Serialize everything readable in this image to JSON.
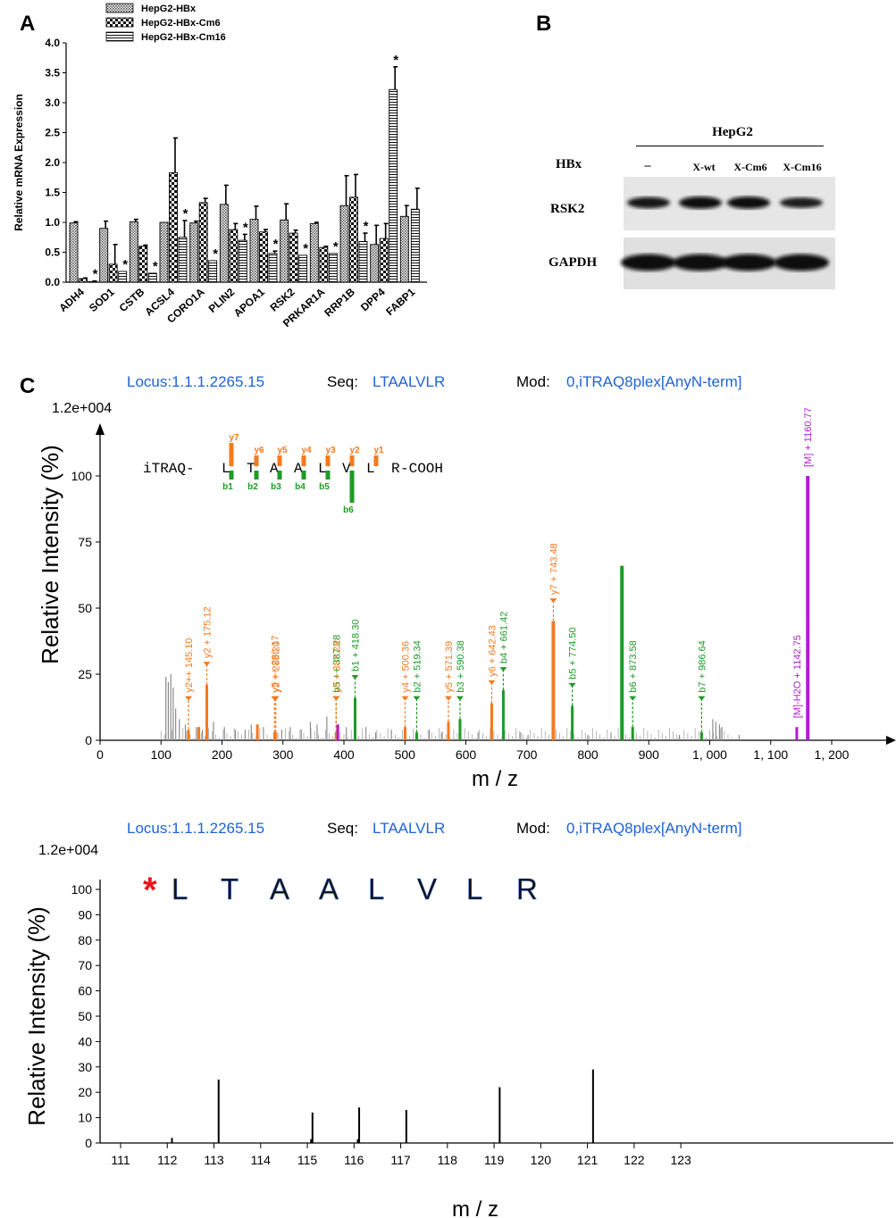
{
  "panels": {
    "a": "A",
    "b": "B",
    "c": "C"
  },
  "colors": {
    "orange": "#f47a20",
    "green": "#1f9a26",
    "magenta": "#b21bd6",
    "blue": "#1f63d8",
    "gray": "#8c8c8c",
    "black": "#000000",
    "red": "#e8161c"
  },
  "chart_data": [
    {
      "id": "panelA",
      "type": "bar",
      "ylabel": "Relative mRNA Expression",
      "ylim": [
        0,
        4.0
      ],
      "yticks": [
        "0.0",
        "0.5",
        "1.0",
        "1.5",
        "2.0",
        "2.5",
        "3.0",
        "3.5",
        "4.0"
      ],
      "categories": [
        "ADH4",
        "SOD1",
        "CSTB",
        "ACSL4",
        "CORO1A",
        "PLIN2",
        "APOA1",
        "RSK2",
        "PRKAR1A",
        "RRP1B",
        "DPP4",
        "FABP1"
      ],
      "legend_position": "top",
      "series": [
        {
          "name": "HepG2-HBx",
          "pattern": "crosshatch",
          "values": [
            0.99,
            0.9,
            1.01,
            1.0,
            0.99,
            1.3,
            1.05,
            1.04,
            0.98,
            1.28,
            0.63,
            1.1
          ],
          "errors": [
            0.02,
            0.12,
            0.04,
            0.0,
            0.03,
            0.32,
            0.22,
            0.27,
            0.02,
            0.5,
            0.32,
            0.18
          ]
        },
        {
          "name": "HepG2-HBx-Cm6",
          "pattern": "checker",
          "values": [
            0.06,
            0.3,
            0.6,
            1.83,
            1.33,
            0.88,
            0.84,
            0.82,
            0.58,
            1.42,
            0.73,
            null
          ],
          "errors": [
            0.01,
            0.33,
            0.02,
            0.58,
            0.07,
            0.1,
            0.04,
            0.05,
            0.02,
            0.38,
            0.25,
            null
          ]
        },
        {
          "name": "HepG2-HBx-Cm16",
          "pattern": "hlines",
          "values": [
            0.01,
            0.18,
            0.15,
            0.75,
            0.36,
            0.7,
            0.48,
            0.45,
            0.48,
            0.68,
            3.22,
            1.22
          ],
          "errors": [
            0.01,
            0.0,
            0.0,
            0.28,
            0.0,
            0.1,
            0.04,
            0.0,
            0.0,
            0.14,
            0.38,
            0.35
          ]
        }
      ],
      "significance": [
        {
          "category": 0,
          "series": 2,
          "label": "*"
        },
        {
          "category": 1,
          "series": 2,
          "label": "*"
        },
        {
          "category": 2,
          "series": 2,
          "label": "*"
        },
        {
          "category": 3,
          "series": 2,
          "label": "*"
        },
        {
          "category": 4,
          "series": 2,
          "label": "*"
        },
        {
          "category": 5,
          "series": 2,
          "label": "*"
        },
        {
          "category": 6,
          "series": 2,
          "label": "*"
        },
        {
          "category": 7,
          "series": 2,
          "label": "*"
        },
        {
          "category": 8,
          "series": 2,
          "label": "*"
        },
        {
          "category": 9,
          "series": 2,
          "label": "*"
        },
        {
          "category": 10,
          "series": 2,
          "label": "*"
        }
      ]
    },
    {
      "id": "panelC_top",
      "type": "bar",
      "header": {
        "locus_label": "Locus:",
        "locus": "1.1.1.2265.15",
        "seq_label": "Seq:",
        "seq": "LTAALVLR",
        "mod_label": "Mod:",
        "mod": "0,iTRAQ8plex[AnyN-term]"
      },
      "scale_label": "1.2e+004",
      "xlabel": "m / z",
      "ylabel": "Relative Intensity (%)",
      "xlim": [
        0,
        1300
      ],
      "ylim": [
        0,
        110
      ],
      "xticks": [
        {
          "v": 0,
          "t": "0"
        },
        {
          "v": 100,
          "t": "100"
        },
        {
          "v": 200,
          "t": "200"
        },
        {
          "v": 300,
          "t": "300"
        },
        {
          "v": 400,
          "t": "400"
        },
        {
          "v": 500,
          "t": "500"
        },
        {
          "v": 600,
          "t": "600"
        },
        {
          "v": 700,
          "t": "700"
        },
        {
          "v": 800,
          "t": "800"
        },
        {
          "v": 900,
          "t": "900"
        },
        {
          "v": 1000,
          "t": "1, 000"
        },
        {
          "v": 1100,
          "t": "1, 100"
        },
        {
          "v": 1200,
          "t": "1, 200"
        }
      ],
      "yticks": [
        "0",
        "25",
        "50",
        "75",
        "100"
      ],
      "sequence": {
        "prefix": "iTRAQ-",
        "residues": [
          "L",
          "T",
          "A",
          "A",
          "L",
          "V",
          "L",
          "R"
        ],
        "suffix": "-COOH",
        "y_ions": [
          "y7",
          "y6",
          "y5",
          "y4",
          "y3",
          "y2",
          "y1"
        ],
        "b_ions": [
          "b1",
          "b2",
          "b3",
          "b4",
          "b5",
          "b6"
        ]
      },
      "peaks": [
        {
          "mz": 145.1,
          "i": 4,
          "color": "orange",
          "label": "y2++ 145.10"
        },
        {
          "mz": 175.12,
          "i": 21,
          "color": "orange",
          "label": "y2 + 175.12"
        },
        {
          "mz": 286.17,
          "i": 3,
          "color": "orange",
          "label": "y5 ++ 286.17"
        },
        {
          "mz": 288.2,
          "i": 3,
          "color": "orange",
          "label": "y2 + 288.20"
        },
        {
          "mz": 387.28,
          "i": 3,
          "color": "green",
          "label": "b5 ++ 387.28"
        },
        {
          "mz": 387.28,
          "i": 3,
          "color": "orange",
          "label": "y3 + 387.28"
        },
        {
          "mz": 418.3,
          "i": 16,
          "color": "green",
          "label": "b1 + 418.30"
        },
        {
          "mz": 500.36,
          "i": 5,
          "color": "orange",
          "label": "y4 + 500.36"
        },
        {
          "mz": 519.34,
          "i": 3,
          "color": "green",
          "label": "b2 + 519.34"
        },
        {
          "mz": 571.39,
          "i": 7,
          "color": "orange",
          "label": "y5 + 571.39"
        },
        {
          "mz": 590.38,
          "i": 8,
          "color": "green",
          "label": "b3 + 590.38"
        },
        {
          "mz": 642.43,
          "i": 14,
          "color": "orange",
          "label": "y6 + 642.43"
        },
        {
          "mz": 661.42,
          "i": 19,
          "color": "green",
          "label": "b4 + 661.42"
        },
        {
          "mz": 743.48,
          "i": 45,
          "color": "orange",
          "label": "y7 + 743.48"
        },
        {
          "mz": 774.5,
          "i": 13,
          "color": "green",
          "label": "b5 + 774.50"
        },
        {
          "mz": 873.58,
          "i": 5,
          "color": "green",
          "label": "b6 + 873.58"
        },
        {
          "mz": 986.64,
          "i": 3,
          "color": "green",
          "label": "b7 + 986.64"
        },
        {
          "mz": 1142.75,
          "i": 5,
          "color": "magenta",
          "label": "[M]-H2O + 1142.75"
        },
        {
          "mz": 1160.77,
          "i": 100,
          "color": "magenta",
          "label": "[M] + 1160.77"
        },
        {
          "mz": 856,
          "i": 66,
          "color": "green",
          "label": ""
        },
        {
          "mz": 390,
          "i": 6,
          "color": "magenta",
          "label": ""
        },
        {
          "mz": 258,
          "i": 6,
          "color": "orange",
          "label": ""
        },
        {
          "mz": 162,
          "i": 5,
          "color": "orange",
          "label": ""
        }
      ],
      "noise": [
        [
          108,
          24
        ],
        [
          112,
          22
        ],
        [
          116,
          25
        ],
        [
          120,
          20
        ],
        [
          124,
          12
        ],
        [
          130,
          8
        ],
        [
          140,
          6
        ],
        [
          158,
          5
        ],
        [
          168,
          4
        ],
        [
          186,
          7
        ],
        [
          204,
          5
        ],
        [
          222,
          4
        ],
        [
          238,
          4
        ],
        [
          248,
          6
        ],
        [
          268,
          5
        ],
        [
          298,
          4
        ],
        [
          312,
          5
        ],
        [
          330,
          4
        ],
        [
          345,
          7
        ],
        [
          356,
          6
        ],
        [
          372,
          9
        ],
        [
          404,
          5
        ],
        [
          436,
          5
        ],
        [
          452,
          3
        ],
        [
          478,
          4
        ],
        [
          540,
          4
        ],
        [
          560,
          3
        ],
        [
          620,
          3
        ],
        [
          690,
          3
        ],
        [
          702,
          2
        ],
        [
          744,
          5
        ],
        [
          800,
          2
        ],
        [
          838,
          3
        ],
        [
          858,
          7
        ],
        [
          950,
          2
        ],
        [
          1005,
          8
        ],
        [
          1010,
          7
        ],
        [
          1016,
          6
        ],
        [
          1020,
          5
        ],
        [
          1048,
          2
        ]
      ]
    },
    {
      "id": "panelC_bottom",
      "type": "bar",
      "header": {
        "locus_label": "Locus:",
        "locus": "1.1.1.2265.15",
        "seq_label": "Seq:",
        "seq": "LTAALVLR",
        "mod_label": "Mod:",
        "mod": "0,iTRAQ8plex[AnyN-term]"
      },
      "scale_label": "1.2e+004",
      "xlabel": "m / z",
      "ylabel": "Relative Intensity (%)",
      "xlim": [
        110.3,
        123.95
      ],
      "ylim": [
        0,
        100
      ],
      "xticks": [
        {
          "v": 111,
          "t": "111"
        },
        {
          "v": 112,
          "t": "112"
        },
        {
          "v": 113,
          "t": "113"
        },
        {
          "v": 114,
          "t": "114"
        },
        {
          "v": 115,
          "t": "115"
        },
        {
          "v": 116,
          "t": "116"
        },
        {
          "v": 117,
          "t": "117"
        },
        {
          "v": 118,
          "t": "118"
        },
        {
          "v": 119,
          "t": "119"
        },
        {
          "v": 120,
          "t": "120"
        },
        {
          "v": 121,
          "t": "121"
        },
        {
          "v": 122,
          "t": "122"
        },
        {
          "v": 123,
          "t": "123"
        }
      ],
      "yticks": [
        "0",
        "10",
        "20",
        "30",
        "40",
        "50",
        "60",
        "70",
        "80",
        "90",
        "100"
      ],
      "sequence_mark": "*",
      "sequence_letters": [
        "L",
        "T",
        "A",
        "A",
        "L",
        "V",
        "L",
        "R"
      ],
      "peaks": [
        {
          "mz": 112.1,
          "i": 2
        },
        {
          "mz": 113.1,
          "i": 25
        },
        {
          "mz": 115.08,
          "i": 1.5
        },
        {
          "mz": 115.11,
          "i": 12
        },
        {
          "mz": 116.08,
          "i": 1.5
        },
        {
          "mz": 116.11,
          "i": 14
        },
        {
          "mz": 117.12,
          "i": 13
        },
        {
          "mz": 119.12,
          "i": 22
        },
        {
          "mz": 121.12,
          "i": 29
        }
      ]
    }
  ],
  "blot": {
    "cell_line": "HepG2",
    "hbx_label": "HBx",
    "lanes": [
      "–",
      "X-wt",
      "X-Cm6",
      "X-Cm16"
    ],
    "rows": [
      {
        "label": "RSK2",
        "intensities": [
          0.72,
          0.9,
          0.88,
          0.55
        ]
      },
      {
        "label": "GAPDH",
        "intensities": [
          0.95,
          0.95,
          0.95,
          0.95
        ]
      }
    ]
  }
}
